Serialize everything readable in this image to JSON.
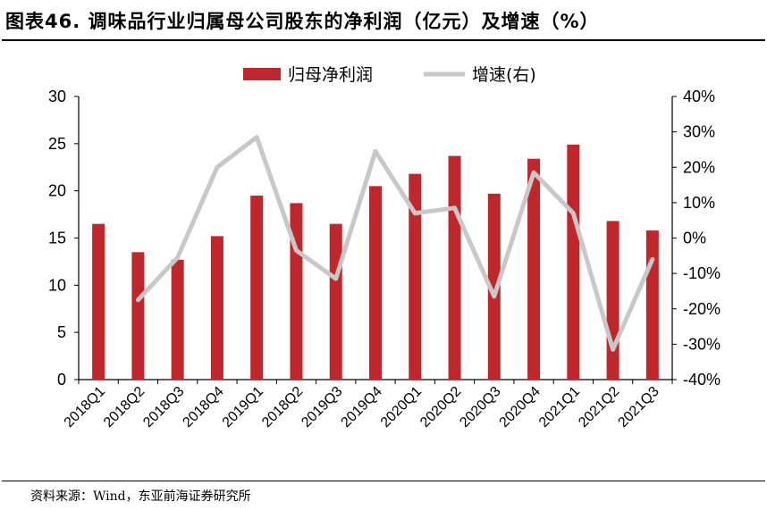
{
  "header": {
    "title": "图表46. 调味品行业归属母公司股东的净利润（亿元）及增速（%）"
  },
  "footer": {
    "source": "资料来源：Wind，东亚前海证券研究所"
  },
  "chart_data": {
    "type": "bar+line",
    "categories": [
      "2018Q1",
      "2018Q2",
      "2018Q3",
      "2018Q4",
      "2019Q1",
      "2018Q2",
      "2019Q3",
      "2019Q4",
      "2020Q1",
      "2020Q2",
      "2020Q3",
      "2020Q4",
      "2021Q1",
      "2021Q2",
      "2021Q3"
    ],
    "series": [
      {
        "name": "归母净利润",
        "type": "bar",
        "axis": "left",
        "color": "#C0272D",
        "values": [
          16.5,
          13.5,
          12.7,
          15.2,
          19.5,
          18.7,
          16.5,
          20.5,
          21.8,
          23.7,
          19.7,
          23.4,
          24.9,
          16.8,
          15.8
        ]
      },
      {
        "name": "增速(右)",
        "type": "line",
        "axis": "right",
        "color": "#C8C8C8",
        "values": [
          null,
          -17.5,
          -5.5,
          20,
          28.5,
          -3.5,
          -11.5,
          24.5,
          7,
          8.5,
          -16.5,
          18.5,
          7,
          -31.5,
          -6
        ]
      }
    ],
    "ylim_left": [
      0,
      30
    ],
    "yticks_left": [
      0,
      5,
      10,
      15,
      20,
      25,
      30
    ],
    "ylim_right": [
      -40,
      40
    ],
    "yticks_right": [
      "-40%",
      "-30%",
      "-20%",
      "-10%",
      "0%",
      "10%",
      "20%",
      "30%",
      "40%"
    ],
    "legend_position": "top-center",
    "grid": false
  }
}
